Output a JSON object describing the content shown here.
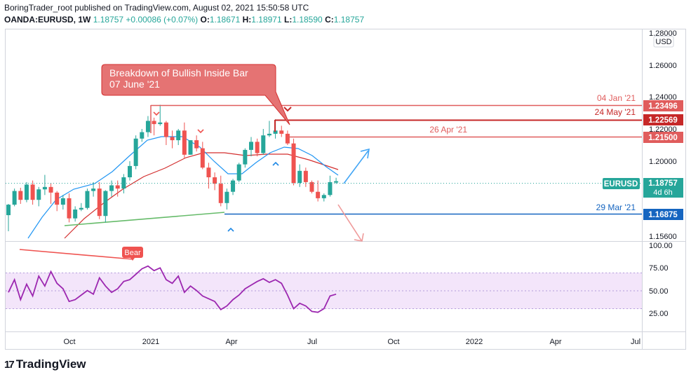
{
  "header": {
    "line1": "BoringTrader_root published on TradingView.com, August 02, 2021 15:50:58 UTC",
    "symbol": "OANDA:EURUSD, 1W",
    "price": "1.18757",
    "change": "+0.00086 (+0.07%)",
    "o_label": "O:",
    "o": "1.18671",
    "h_label": "H:",
    "h": "1.18971",
    "l_label": "L:",
    "l": "1.18590",
    "c_label": "C:",
    "c": "1.18757"
  },
  "currency_label": "USD",
  "price_axis": [
    "1.28000",
    "1.26000",
    "1.24000",
    "1.22000",
    "1.20000",
    "1.15600"
  ],
  "rsi_axis": [
    "100.00",
    "75.00",
    "50.00",
    "25.00"
  ],
  "time_axis": [
    "Oct",
    "2021",
    "Apr",
    "Jul",
    "Oct",
    "2022",
    "Apr",
    "Jul"
  ],
  "annotations": {
    "callout_line1": "Breakdown of Bullish Inside Bar",
    "callout_line2": "07 June '21",
    "bear_label": "Bear"
  },
  "levels": [
    {
      "date": "04 Jan '21",
      "value": "1.23496",
      "color": "#e05c5c"
    },
    {
      "date": "24 May '21",
      "value": "1.22569",
      "color": "#c62828"
    },
    {
      "date": "26 Apr '21",
      "value": "1.21500",
      "color": "#e05c5c"
    },
    {
      "date": "29 Mar '21",
      "value": "1.16875",
      "color": "#1565c0"
    }
  ],
  "current": {
    "symbol": "EURUSD",
    "value": "1.18757",
    "countdown": "4d 6h",
    "color": "#26a69a"
  },
  "footer": {
    "brand": "TradingView",
    "logo": "17"
  },
  "colors": {
    "up": "#26a69a",
    "down": "#ef5350",
    "ma_fast": "#2196f3",
    "ma_slow": "#d32f2f",
    "rsi": "#9c27b0",
    "rsi_band": "#f3e5fa"
  },
  "chart_data": {
    "type": "candlestick",
    "pair": "EURUSD",
    "interval": "1W",
    "candles_ohlc_approx": [
      [
        1.1665,
        1.1735,
        1.1565,
        1.173
      ],
      [
        1.173,
        1.183,
        1.172,
        1.1815
      ],
      [
        1.1815,
        1.1835,
        1.1735,
        1.176
      ],
      [
        1.176,
        1.187,
        1.1745,
        1.1855
      ],
      [
        1.1855,
        1.188,
        1.173,
        1.176
      ],
      [
        1.176,
        1.184,
        1.172,
        1.1825
      ],
      [
        1.1825,
        1.1915,
        1.179,
        1.184
      ],
      [
        1.184,
        1.1865,
        1.1735,
        1.1805
      ],
      [
        1.1805,
        1.1815,
        1.169,
        1.173
      ],
      [
        1.173,
        1.179,
        1.17,
        1.177
      ],
      [
        1.177,
        1.18,
        1.162,
        1.1645
      ],
      [
        1.1645,
        1.172,
        1.1625,
        1.17
      ],
      [
        1.17,
        1.174,
        1.169,
        1.171
      ],
      [
        1.171,
        1.183,
        1.17,
        1.1815
      ],
      [
        1.1815,
        1.187,
        1.178,
        1.183
      ],
      [
        1.183,
        1.187,
        1.164,
        1.166
      ],
      [
        1.166,
        1.182,
        1.162,
        1.1815
      ],
      [
        1.1815,
        1.188,
        1.178,
        1.185
      ],
      [
        1.185,
        1.188,
        1.178,
        1.183
      ],
      [
        1.183,
        1.192,
        1.18,
        1.19
      ],
      [
        1.19,
        1.2,
        1.188,
        1.197
      ],
      [
        1.197,
        1.216,
        1.195,
        1.214
      ],
      [
        1.214,
        1.22,
        1.212,
        1.218
      ],
      [
        1.218,
        1.228,
        1.215,
        1.225
      ],
      [
        1.225,
        1.227,
        1.216,
        1.223
      ],
      [
        1.223,
        1.235,
        1.222,
        1.224
      ],
      [
        1.224,
        1.225,
        1.21,
        1.215
      ],
      [
        1.215,
        1.219,
        1.208,
        1.213
      ],
      [
        1.213,
        1.22,
        1.21,
        1.219
      ],
      [
        1.219,
        1.224,
        1.202,
        1.204
      ],
      [
        1.204,
        1.213,
        1.204,
        1.213
      ],
      [
        1.213,
        1.216,
        1.206,
        1.208
      ],
      [
        1.208,
        1.212,
        1.195,
        1.196
      ],
      [
        1.196,
        1.199,
        1.183,
        1.19
      ],
      [
        1.19,
        1.193,
        1.182,
        1.186
      ],
      [
        1.186,
        1.191,
        1.172,
        1.174
      ],
      [
        1.174,
        1.183,
        1.17,
        1.181
      ],
      [
        1.181,
        1.189,
        1.179,
        1.188
      ],
      [
        1.188,
        1.199,
        1.187,
        1.198
      ],
      [
        1.198,
        1.208,
        1.196,
        1.207
      ],
      [
        1.207,
        1.215,
        1.203,
        1.212
      ],
      [
        1.212,
        1.214,
        1.203,
        1.205
      ],
      [
        1.205,
        1.22,
        1.204,
        1.216
      ],
      [
        1.216,
        1.225,
        1.215,
        1.217
      ],
      [
        1.217,
        1.226,
        1.214,
        1.219
      ],
      [
        1.219,
        1.222,
        1.215,
        1.217
      ],
      [
        1.217,
        1.219,
        1.21,
        1.211
      ],
      [
        1.211,
        1.214,
        1.185,
        1.1865
      ],
      [
        1.1865,
        1.198,
        1.184,
        1.194
      ],
      [
        1.194,
        1.196,
        1.184,
        1.187
      ],
      [
        1.187,
        1.188,
        1.18,
        1.181
      ],
      [
        1.181,
        1.188,
        1.175,
        1.177
      ],
      [
        1.177,
        1.18,
        1.175,
        1.179
      ],
      [
        1.179,
        1.191,
        1.178,
        1.187
      ],
      [
        1.18671,
        1.18971,
        1.1859,
        1.18757
      ]
    ],
    "rsi_approx": [
      48,
      62,
      40,
      57,
      44,
      66,
      55,
      71,
      58,
      52,
      38,
      40,
      45,
      50,
      46,
      64,
      55,
      48,
      52,
      60,
      62,
      68,
      74,
      77,
      72,
      75,
      62,
      58,
      66,
      48,
      55,
      50,
      44,
      41,
      38,
      29,
      33,
      40,
      45,
      52,
      56,
      60,
      63,
      59,
      62,
      58,
      45,
      30,
      36,
      33,
      27,
      26,
      30,
      44,
      46
    ],
    "rsi_bands": [
      30,
      70
    ],
    "price_range": [
      1.15,
      1.28
    ],
    "rsi_range": [
      0,
      100
    ]
  }
}
